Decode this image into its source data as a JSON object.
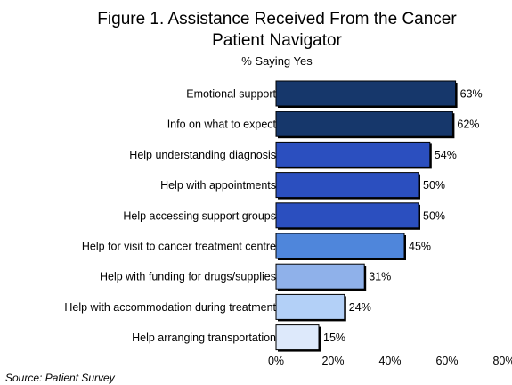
{
  "chart_data": {
    "type": "bar",
    "orientation": "horizontal",
    "title_line1": "Figure 1. Assistance Received From the Cancer",
    "title_line2": "Patient Navigator",
    "subtitle": "% Saying Yes",
    "source": "Source: Patient Survey",
    "categories": [
      "Emotional support",
      "Info on what to expect",
      "Help understanding diagnosis",
      "Help with appointments",
      "Help accessing support groups",
      "Help for visit to cancer treatment centre",
      "Help with funding for drugs/supplies",
      "Help with accommodation during treatment",
      "Help arranging transportation"
    ],
    "values": [
      63,
      62,
      54,
      50,
      50,
      45,
      31,
      24,
      15
    ],
    "value_labels": [
      "63%",
      "62%",
      "54%",
      "50%",
      "50%",
      "45%",
      "31%",
      "24%",
      "15%"
    ],
    "bar_colors": [
      "#16376b",
      "#16376b",
      "#2b4fbf",
      "#2b4fbf",
      "#2b4fbf",
      "#4f86db",
      "#8fb1ea",
      "#b3d0f7",
      "#dde9fb"
    ],
    "xlim": [
      0,
      80
    ],
    "xticks": [
      0,
      20,
      40,
      60,
      80
    ],
    "xtick_labels": [
      "0%",
      "20%",
      "40%",
      "60%",
      "80%"
    ],
    "grid": false,
    "legend": "none"
  }
}
